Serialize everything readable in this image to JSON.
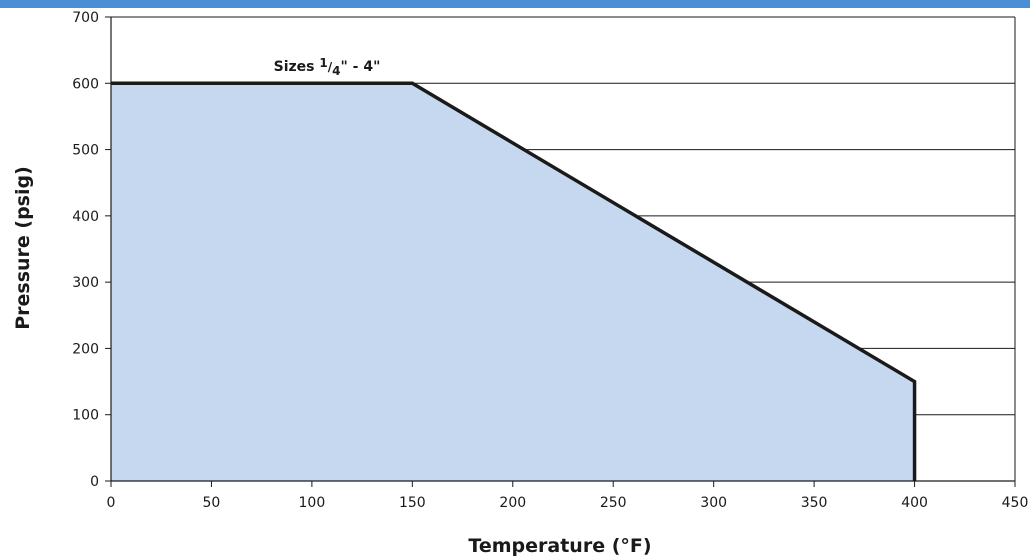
{
  "chart_data": {
    "type": "area",
    "xlabel": "Temperature (°F)",
    "ylabel": "Pressure (psig)",
    "xlim": [
      0,
      450
    ],
    "ylim": [
      0,
      700
    ],
    "x_ticks": [
      0,
      50,
      100,
      150,
      200,
      250,
      300,
      350,
      400,
      450
    ],
    "y_ticks": [
      0,
      100,
      200,
      300,
      400,
      500,
      600,
      700
    ],
    "grid": "horizontal",
    "series": [
      {
        "x": [
          0,
          150,
          400,
          400
        ],
        "y": [
          600,
          600,
          150,
          0
        ]
      }
    ],
    "annotation": {
      "text": "Sizes 1/4\" - 4\""
    },
    "colors": {
      "fill": "#c5d8ef",
      "line": "#1a1a1a",
      "top_bar": "#4a8fd4"
    }
  }
}
